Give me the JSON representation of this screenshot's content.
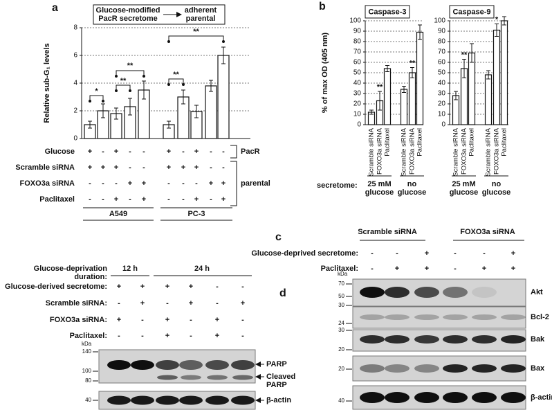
{
  "chart_data": [
    {
      "type": "bar",
      "panel": "a",
      "y_label": "Relative sub-G₁ levels",
      "categories": [
        null,
        null,
        null,
        null,
        null,
        null,
        null,
        null,
        null,
        null
      ],
      "values": [
        1.0,
        2.0,
        1.8,
        2.3,
        3.5,
        1.0,
        3.0,
        1.95,
        3.8,
        6.0
      ],
      "errors": [
        0.25,
        0.5,
        0.4,
        0.6,
        0.65,
        0.25,
        0.5,
        0.45,
        0.4,
        0.6
      ],
      "color": "#ffffff",
      "ylim": [
        0,
        8
      ],
      "yticks": [
        0,
        2,
        4,
        6,
        8
      ],
      "grid": true,
      "annotations": [
        "*",
        "**",
        "**",
        "**",
        "**"
      ],
      "header": {
        "left": [
          "Glucose-modified",
          "PacR secretome"
        ],
        "right": [
          "adherent",
          "parental"
        ]
      },
      "conditions": {
        "rows": [
          {
            "label": "Glucose",
            "marks": [
              "+",
              "-",
              "+",
              "-",
              "-",
              "+",
              "-",
              "+",
              "-",
              "-"
            ]
          },
          {
            "label": "Scramble siRNA",
            "marks": [
              "+",
              "+",
              "+",
              "-",
              "-",
              "+",
              "+",
              "+",
              "-",
              "-"
            ]
          },
          {
            "label": "FOXO3a siRNA",
            "marks": [
              "-",
              "-",
              "-",
              "+",
              "+",
              "-",
              "-",
              "-",
              "+",
              "+"
            ]
          },
          {
            "label": "Paclitaxel",
            "marks": [
              "-",
              "-",
              "+",
              "-",
              "+",
              "-",
              "-",
              "+",
              "-",
              "+"
            ]
          }
        ],
        "brackets": [
          "PacR",
          "parental"
        ]
      },
      "groups": [
        "A549",
        "PC-3"
      ]
    },
    {
      "type": "bar",
      "panel": "b",
      "title": "Caspase-3",
      "y_label": "% of max OD (405 nm)",
      "categories": [
        "Scramble siRNA",
        "FOXO3a siRNA",
        "Paclitaxel",
        "Scramble siRNA",
        "FOXO3a siRNA",
        "Paclitaxel"
      ],
      "values": [
        12,
        23,
        54,
        34,
        50,
        89
      ],
      "errors": [
        2,
        9,
        3,
        3,
        5,
        7
      ],
      "color": "#ffffff",
      "ylim": [
        0,
        100
      ],
      "yticks": [
        0,
        10,
        20,
        30,
        40,
        50,
        60,
        70,
        80,
        90,
        100
      ],
      "grid": true,
      "annotations": [
        "**",
        "**"
      ],
      "group_prefix": "secretome:",
      "groups": [
        [
          "25 mM",
          "glucose"
        ],
        [
          "no",
          "glucose"
        ]
      ]
    },
    {
      "type": "bar",
      "title": "Caspase-9",
      "categories": [
        "Scramble siRNA",
        "FOXO3a siRNA",
        "Paclitaxel",
        "Scramble siRNA",
        "FOXO3a siRNA",
        "Paclitaxel"
      ],
      "values": [
        28,
        54,
        69,
        48,
        91,
        100
      ],
      "errors": [
        4,
        9,
        9,
        4,
        6,
        4
      ],
      "color": "#ffffff",
      "ylim": [
        0,
        100
      ],
      "yticks": [
        0,
        10,
        20,
        30,
        40,
        50,
        60,
        70,
        80,
        90,
        100
      ],
      "grid": true,
      "annotations": [
        "**",
        "*"
      ],
      "groups": [
        [
          "25 mM",
          "glucose"
        ],
        [
          "no",
          "glucose"
        ]
      ]
    }
  ],
  "blots": {
    "c": {
      "panel": "c",
      "duration_label": [
        "Glucose-deprivation",
        "duration:"
      ],
      "durations": [
        "12 h",
        "24 h"
      ],
      "rows": [
        {
          "label": "Glucose-derived secretome:",
          "marks": [
            "+",
            "+",
            "+",
            "+",
            "-",
            "-"
          ]
        },
        {
          "label": "Scramble siRNA:",
          "marks": [
            "-",
            "+",
            "-",
            "+",
            "-",
            "+"
          ]
        },
        {
          "label": "FOXO3a siRNA:",
          "marks": [
            "+",
            "-",
            "+",
            "-",
            "+",
            "-"
          ]
        },
        {
          "label": "Paclitaxel:",
          "marks": [
            "-",
            "-",
            "+",
            "-",
            "+",
            "-"
          ]
        }
      ],
      "kda": "kDa",
      "markers": [
        140,
        100,
        80,
        40
      ],
      "labels": [
        [
          "PARP"
        ],
        [
          "Cleaved",
          "PARP"
        ],
        [
          "β-actin"
        ]
      ]
    },
    "d": {
      "panel": "d",
      "groups": [
        "Scramble siRNA",
        "FOXO3a siRNA"
      ],
      "rows": [
        {
          "label": "Glucose-deprived secretome:",
          "marks": [
            "-",
            "-",
            "+",
            "-",
            "-",
            "+"
          ]
        },
        {
          "label": "Paclitaxel:",
          "marks": [
            "-",
            "+",
            "+",
            "-",
            "+",
            "+"
          ]
        }
      ],
      "kda": "kDa",
      "blots": [
        {
          "name": "Akt",
          "markers": [
            70,
            50
          ]
        },
        {
          "name": "Bcl-2",
          "markers": [
            30,
            24
          ]
        },
        {
          "name": "Bak",
          "markers": [
            30,
            20
          ]
        },
        {
          "name": "Bax",
          "markers": [
            20
          ]
        },
        {
          "name": "β-actin",
          "markers": [
            40
          ]
        }
      ]
    }
  }
}
